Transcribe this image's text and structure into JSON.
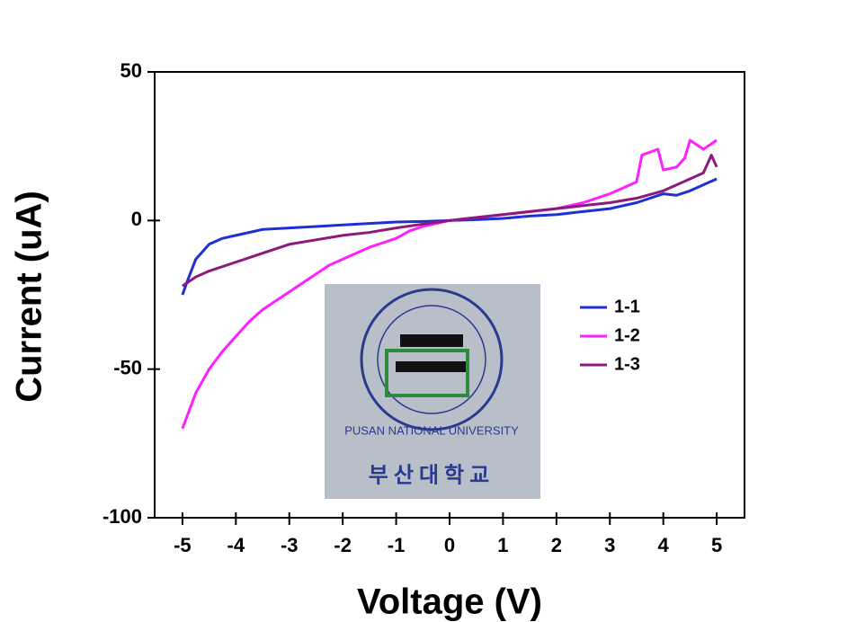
{
  "chart_data": {
    "type": "line",
    "x_label": "Voltage (V)",
    "y_label": "Current (uA)",
    "xlim": [
      -5.52,
      5.52
    ],
    "xticks": [
      -5,
      -4,
      -3,
      -2,
      -1,
      0,
      1,
      2,
      3,
      4,
      5
    ],
    "ylim": [
      -100,
      50
    ],
    "yticks": [
      -100,
      -50,
      0,
      50
    ],
    "legend": "right",
    "inset_labels": [
      "PUSAN NATIONAL UNIVERSITY",
      "부산대학교"
    ],
    "series": [
      {
        "name": "1-1",
        "color": "#1f2fd6",
        "x": [
          -5,
          -4.9,
          -4.75,
          -4.5,
          -4.25,
          -4,
          -3.5,
          -3,
          -2.5,
          -2,
          -1.5,
          -1,
          -0.5,
          0,
          0.5,
          1,
          1.5,
          2,
          2.5,
          3,
          3.25,
          3.5,
          3.75,
          4,
          4.25,
          4.5,
          4.75,
          5
        ],
        "values": [
          -25,
          -20,
          -13,
          -8,
          -6,
          -5,
          -3,
          -2.5,
          -2,
          -1.5,
          -1,
          -0.5,
          -0.3,
          0,
          0.3,
          0.7,
          1.5,
          2,
          3,
          4,
          5,
          6,
          7.5,
          9,
          8.5,
          10,
          12,
          14
        ]
      },
      {
        "name": "1-2",
        "color": "#ff1fff",
        "x": [
          -5,
          -4.75,
          -4.5,
          -4.25,
          -4,
          -3.75,
          -3.5,
          -3.25,
          -3,
          -2.75,
          -2.5,
          -2.25,
          -2,
          -1.75,
          -1.5,
          -1.25,
          -1,
          -0.75,
          -0.5,
          -0.25,
          0,
          1,
          2,
          2.5,
          3,
          3.25,
          3.5,
          3.6,
          3.75,
          3.9,
          4,
          4.25,
          4.4,
          4.5,
          4.75,
          5
        ],
        "values": [
          -70,
          -58,
          -50,
          -44,
          -39,
          -34,
          -30,
          -27,
          -24,
          -21,
          -18,
          -15,
          -13,
          -11,
          -9,
          -7.5,
          -6,
          -3.5,
          -2,
          -1,
          0,
          2,
          4,
          6,
          9,
          11,
          13,
          22,
          23,
          24,
          17,
          18,
          21,
          27,
          24,
          27
        ]
      },
      {
        "name": "1-3",
        "color": "#8b1a7a",
        "x": [
          -5,
          -4.75,
          -4.5,
          -4,
          -3.5,
          -3,
          -2.5,
          -2,
          -1.5,
          -1,
          -0.5,
          0,
          0.5,
          1,
          1.5,
          2,
          2.5,
          3,
          3.5,
          4,
          4.5,
          4.75,
          4.9,
          5
        ],
        "values": [
          -22,
          -19,
          -17,
          -14,
          -11,
          -8,
          -6.5,
          -5,
          -4,
          -2.5,
          -1.2,
          0,
          1,
          2,
          3,
          4,
          5,
          6,
          7.5,
          10,
          14,
          16,
          22,
          18
        ]
      }
    ]
  }
}
